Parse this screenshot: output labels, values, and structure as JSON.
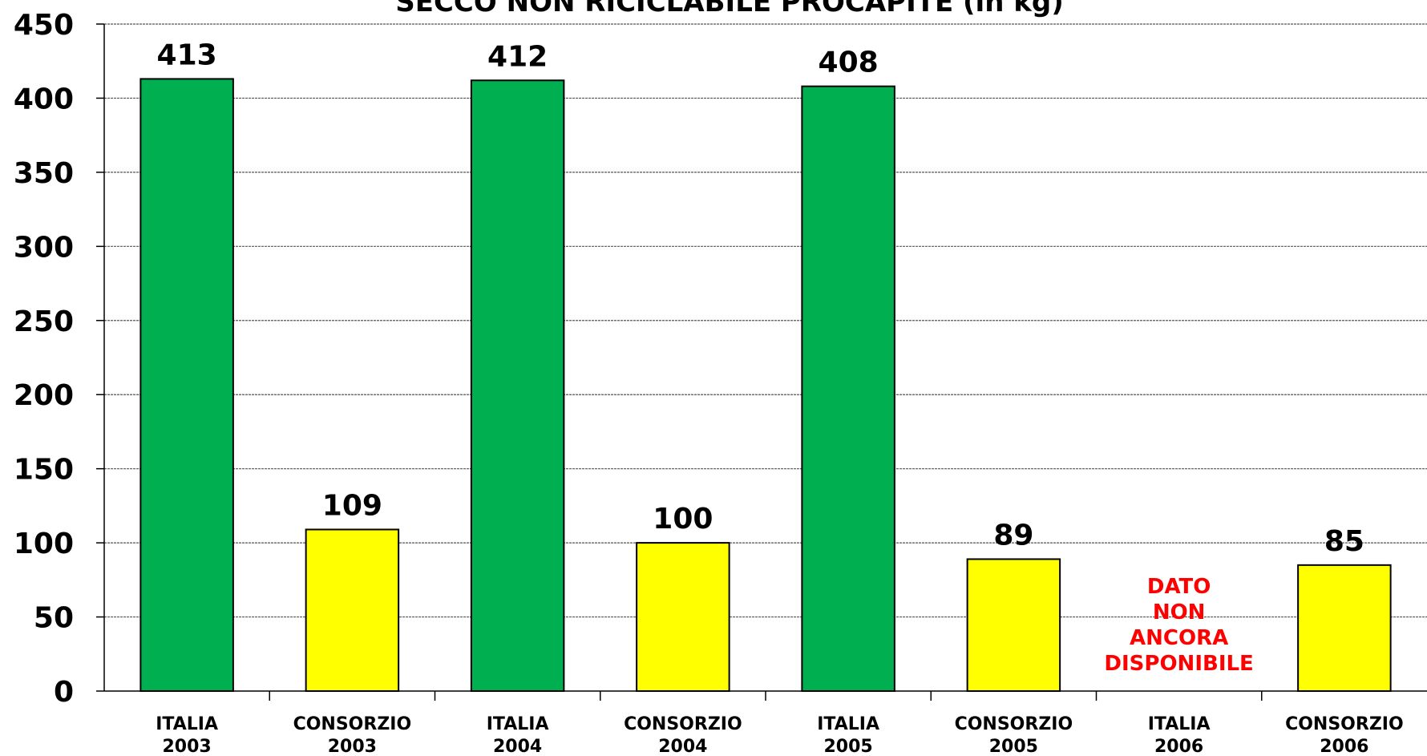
{
  "chart_data": {
    "type": "bar",
    "title": "SECCO NON RICICLABILE PROCAPITE (in kg)",
    "xlabel": "",
    "ylabel": "",
    "ylim": [
      0,
      450
    ],
    "yticks": [
      0,
      50,
      100,
      150,
      200,
      250,
      300,
      350,
      400,
      450
    ],
    "grid": true,
    "categories": [
      [
        "ITALIA",
        "2003"
      ],
      [
        "CONSORZIO",
        "2003"
      ],
      [
        "ITALIA",
        "2004"
      ],
      [
        "CONSORZIO",
        "2004"
      ],
      [
        "ITALIA",
        "2005"
      ],
      [
        "CONSORZIO",
        "2005"
      ],
      [
        "ITALIA",
        "2006"
      ],
      [
        "CONSORZIO",
        "2006"
      ]
    ],
    "values": [
      413,
      109,
      412,
      100,
      408,
      89,
      null,
      85
    ],
    "colors": [
      "#00b050",
      "#ffff00",
      "#00b050",
      "#ffff00",
      "#00b050",
      "#ffff00",
      "#00b050",
      "#ffff00"
    ],
    "missing_note": {
      "index": 6,
      "lines": [
        "DATO",
        "NON",
        "ANCORA",
        "DISPONIBILE"
      ],
      "color": "#ff0000"
    }
  }
}
